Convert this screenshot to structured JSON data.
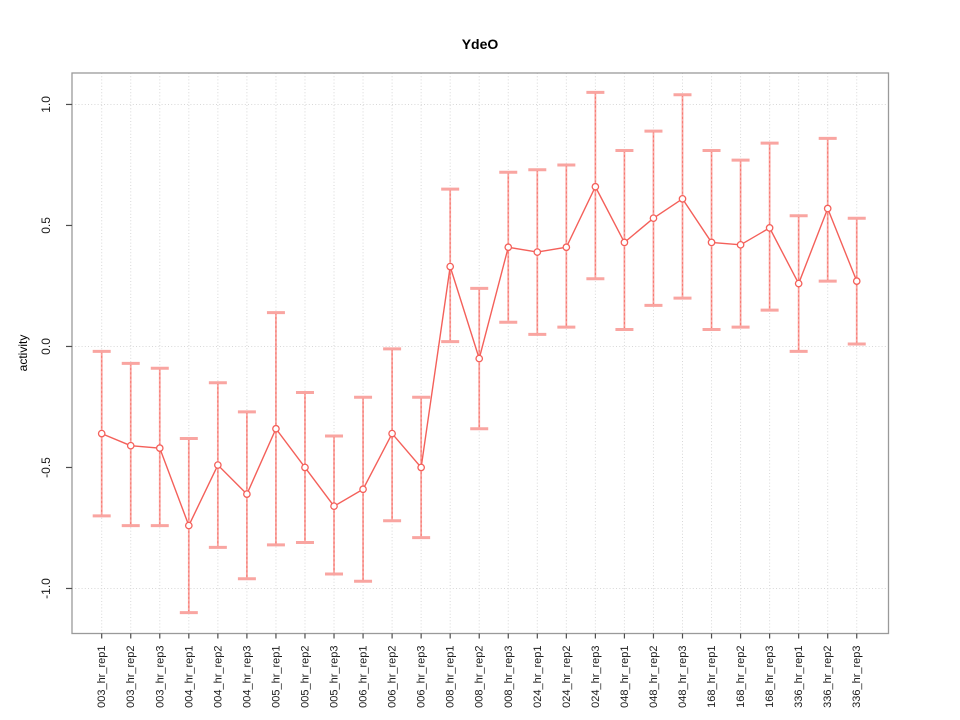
{
  "chart_data": {
    "type": "line",
    "subtype": "points-with-error-bars",
    "title": "YdeO",
    "xlabel": "",
    "ylabel": "activity",
    "ylim": [
      -1.186,
      1.13
    ],
    "yticks": [
      -1.0,
      -0.5,
      0.0,
      0.5,
      1.0
    ],
    "ytick_labels": [
      "-1.0",
      "-0.5",
      "0.0",
      "0.5",
      "1.0"
    ],
    "grid_y": [
      -1.0,
      0.0,
      1.0
    ],
    "grid": true,
    "legend_position": "none",
    "marker": "open-circle",
    "categories": [
      "003_hr_rep1",
      "003_hr_rep2",
      "003_hr_rep3",
      "004_hr_rep1",
      "004_hr_rep2",
      "004_hr_rep3",
      "005_hr_rep1",
      "005_hr_rep2",
      "005_hr_rep3",
      "006_hr_rep1",
      "006_hr_rep2",
      "006_hr_rep3",
      "008_hr_rep1",
      "008_hr_rep2",
      "008_hr_rep3",
      "024_hr_rep1",
      "024_hr_rep2",
      "024_hr_rep3",
      "048_hr_rep1",
      "048_hr_rep2",
      "048_hr_rep3",
      "168_hr_rep1",
      "168_hr_rep2",
      "168_hr_rep3",
      "336_hr_rep1",
      "336_hr_rep2",
      "336_hr_rep3"
    ],
    "series": [
      {
        "name": "activity",
        "values": [
          -0.36,
          -0.41,
          -0.42,
          -0.74,
          -0.49,
          -0.61,
          -0.34,
          -0.5,
          -0.66,
          -0.59,
          -0.36,
          -0.5,
          0.33,
          -0.05,
          0.41,
          0.39,
          0.41,
          0.66,
          0.43,
          0.53,
          0.61,
          0.43,
          0.42,
          0.49,
          0.26,
          0.57,
          0.27
        ],
        "lower": [
          -0.7,
          -0.74,
          -0.74,
          -1.1,
          -0.83,
          -0.96,
          -0.82,
          -0.81,
          -0.94,
          -0.97,
          -0.72,
          -0.79,
          0.02,
          -0.34,
          0.1,
          0.05,
          0.08,
          0.28,
          0.07,
          0.17,
          0.2,
          0.07,
          0.08,
          0.15,
          -0.02,
          0.27,
          0.01
        ],
        "upper": [
          -0.02,
          -0.07,
          -0.09,
          -0.38,
          -0.15,
          -0.27,
          0.14,
          -0.19,
          -0.37,
          -0.21,
          -0.01,
          -0.21,
          0.65,
          0.24,
          0.72,
          0.73,
          0.75,
          1.05,
          0.81,
          0.89,
          1.04,
          0.81,
          0.77,
          0.84,
          0.54,
          0.86,
          0.53
        ]
      }
    ],
    "colors": {
      "series": "#f4605a",
      "error_bar": "#f77a72",
      "error_cap": "#f9a5a1",
      "grid": "#d8d8d8",
      "box": "#9a9a9a",
      "axis": "#4d4d4d",
      "text": "#1a1a1a"
    }
  }
}
